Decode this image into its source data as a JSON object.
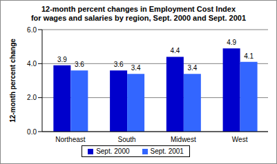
{
  "chart_data": {
    "type": "bar",
    "title": [
      "12-month percent changes in Employment Cost Index",
      "for wages and salaries by region, Sept. 2000 and Sept. 2001"
    ],
    "y_label": "12-month percent change",
    "categories": [
      "Northeast",
      "South",
      "Midwest",
      "West"
    ],
    "series": [
      {
        "name": "Sept. 2000",
        "color": "#0000cc",
        "values": [
          3.9,
          3.6,
          4.4,
          4.9
        ]
      },
      {
        "name": "Sept. 2001",
        "color": "#3366ff",
        "values": [
          3.6,
          3.4,
          3.4,
          4.1
        ]
      }
    ],
    "ylim": [
      0,
      6
    ],
    "yticks": [
      {
        "value": 0,
        "label": "0.0"
      },
      {
        "value": 2,
        "label": "2.0"
      },
      {
        "value": 4,
        "label": "4.0"
      },
      {
        "value": 6,
        "label": "6.0"
      }
    ],
    "grid": true,
    "legend": "bottom",
    "data_labels": true
  }
}
